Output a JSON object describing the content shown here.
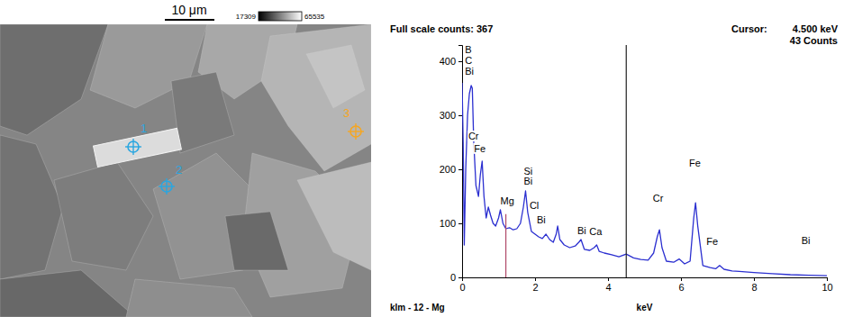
{
  "sem_image": {
    "scale_bar": "10 μm",
    "gray_min": 17309,
    "gray_max": 65535,
    "markers": [
      {
        "label": "1",
        "color": "#2aa6e0"
      },
      {
        "label": "2",
        "color": "#2aa6e0"
      },
      {
        "label": "3",
        "color": "#f5a623"
      }
    ]
  },
  "chart_data": {
    "type": "line",
    "title": "Full scale counts: 367",
    "xlabel": "keV",
    "sample_label": "klm - 12 - Mg",
    "color": "#2b2fd0",
    "cursor": {
      "x": 4.5,
      "label": "Cursor:",
      "value_label": "4.500 keV",
      "counts_label": "43 Counts"
    },
    "reference_line": {
      "x": 1.2,
      "y": 117
    },
    "x": [
      0,
      0.03,
      0.06,
      0.1,
      0.15,
      0.2,
      0.25,
      0.28,
      0.32,
      0.38,
      0.45,
      0.5,
      0.55,
      0.6,
      0.66,
      0.72,
      0.78,
      0.85,
      0.92,
      1.0,
      1.05,
      1.12,
      1.2,
      1.3,
      1.4,
      1.5,
      1.6,
      1.68,
      1.74,
      1.8,
      1.9,
      2.0,
      2.1,
      2.2,
      2.3,
      2.4,
      2.5,
      2.58,
      2.62,
      2.68,
      2.8,
      2.95,
      3.1,
      3.2,
      3.26,
      3.35,
      3.5,
      3.62,
      3.69,
      3.76,
      3.9,
      4.1,
      4.3,
      4.5,
      4.7,
      4.9,
      5.1,
      5.25,
      5.35,
      5.41,
      5.48,
      5.6,
      5.8,
      5.95,
      6.1,
      6.25,
      6.35,
      6.4,
      6.46,
      6.6,
      6.8,
      6.95,
      7.06,
      7.18,
      7.4,
      7.6,
      8.0,
      8.5,
      9.0,
      9.5,
      10.0
    ],
    "values": [
      360,
      250,
      60,
      200,
      300,
      340,
      355,
      350,
      250,
      170,
      150,
      190,
      215,
      150,
      110,
      130,
      115,
      100,
      95,
      110,
      125,
      100,
      90,
      92,
      88,
      90,
      100,
      130,
      160,
      120,
      85,
      80,
      75,
      72,
      80,
      70,
      65,
      80,
      95,
      70,
      60,
      55,
      58,
      65,
      70,
      52,
      50,
      55,
      60,
      48,
      45,
      42,
      38,
      43,
      36,
      33,
      32,
      45,
      75,
      88,
      55,
      30,
      28,
      34,
      25,
      30,
      110,
      138,
      95,
      22,
      18,
      16,
      22,
      15,
      12,
      11,
      9,
      7,
      5,
      4,
      3
    ],
    "xlim": [
      0,
      10
    ],
    "xticks": [
      0,
      2,
      4,
      6,
      8,
      10
    ],
    "ylim": [
      0,
      430
    ],
    "yticks": [
      0,
      100,
      200,
      300,
      400
    ],
    "annotations": [
      {
        "text": "B",
        "x": 0.08,
        "y": 415
      },
      {
        "text": "C",
        "x": 0.08,
        "y": 395
      },
      {
        "text": "Bi",
        "x": 0.08,
        "y": 375
      },
      {
        "text": "Cr",
        "x": 0.17,
        "y": 255
      },
      {
        "text": "Fe",
        "x": 0.33,
        "y": 232
      },
      {
        "text": "Mg",
        "x": 1.05,
        "y": 135
      },
      {
        "text": "Si",
        "x": 1.69,
        "y": 190
      },
      {
        "text": "Bi",
        "x": 1.69,
        "y": 172
      },
      {
        "text": "Cl",
        "x": 1.85,
        "y": 126
      },
      {
        "text": "Bi",
        "x": 2.05,
        "y": 100
      },
      {
        "text": "Bi",
        "x": 3.16,
        "y": 80
      },
      {
        "text": "Ca",
        "x": 3.49,
        "y": 78
      },
      {
        "text": "Cr",
        "x": 5.23,
        "y": 140
      },
      {
        "text": "Fe",
        "x": 6.22,
        "y": 205
      },
      {
        "text": "Fe",
        "x": 6.7,
        "y": 60
      },
      {
        "text": "Bi",
        "x": 9.3,
        "y": 62
      }
    ]
  }
}
